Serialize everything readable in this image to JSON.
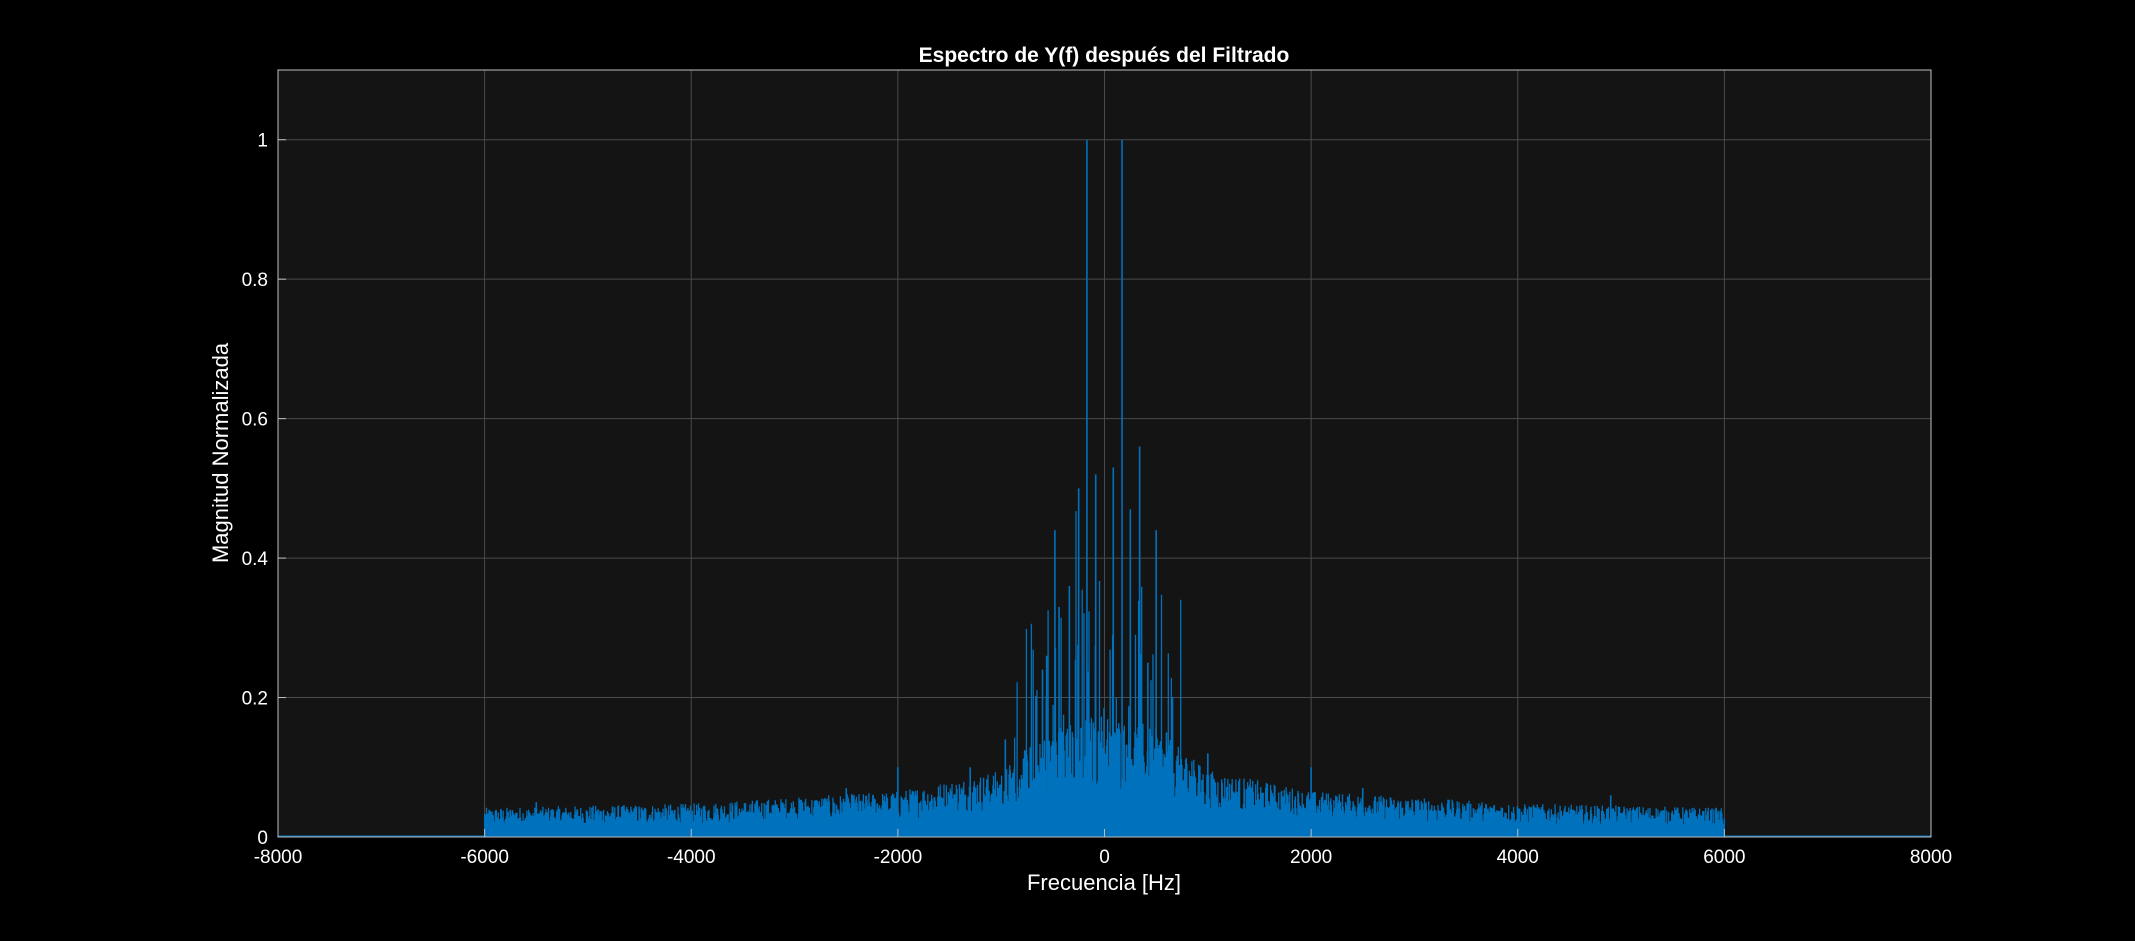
{
  "chart_data": {
    "type": "line",
    "title": "Espectro de Y(f) después del Filtrado",
    "xlabel": "Frecuencia [Hz]",
    "ylabel": "Magnitud Normalizada",
    "xlim": [
      -8000,
      8000
    ],
    "ylim": [
      0,
      1.1
    ],
    "xticks": [
      -8000,
      -6000,
      -4000,
      -2000,
      0,
      2000,
      4000,
      6000,
      8000
    ],
    "yticks": [
      0,
      0.2,
      0.4,
      0.6,
      0.8,
      1
    ],
    "xtick_labels": [
      "-8000",
      "-6000",
      "-4000",
      "-2000",
      "0",
      "2000",
      "4000",
      "6000",
      "8000"
    ],
    "ytick_labels": [
      "0",
      "0.2",
      "0.4",
      "0.6",
      "0.8",
      "1"
    ],
    "grid": true,
    "passband_hz": [
      -6000,
      6000
    ],
    "series": [
      {
        "color": "#0072BD",
        "peaks": [
          {
            "x": -170,
            "y": 1.0
          },
          {
            "x": 170,
            "y": 1.0
          },
          {
            "x": -85,
            "y": 0.52
          },
          {
            "x": 85,
            "y": 0.53
          },
          {
            "x": -250,
            "y": 0.5
          },
          {
            "x": 250,
            "y": 0.47
          },
          {
            "x": 340,
            "y": 0.56
          },
          {
            "x": -340,
            "y": 0.36
          },
          {
            "x": -480,
            "y": 0.44
          },
          {
            "x": 500,
            "y": 0.44
          },
          {
            "x": -440,
            "y": 0.33
          },
          {
            "x": -560,
            "y": 0.26
          },
          {
            "x": -600,
            "y": 0.24
          },
          {
            "x": 420,
            "y": 0.25
          },
          {
            "x": 600,
            "y": 0.15
          },
          {
            "x": 1000,
            "y": 0.12
          },
          {
            "x": -960,
            "y": 0.14
          },
          {
            "x": -1300,
            "y": 0.1
          },
          {
            "x": 1300,
            "y": 0.08
          },
          {
            "x": -2000,
            "y": 0.1
          },
          {
            "x": 2000,
            "y": 0.1
          },
          {
            "x": -2500,
            "y": 0.07
          },
          {
            "x": 2500,
            "y": 0.07
          },
          {
            "x": 4900,
            "y": 0.06
          },
          {
            "x": -5500,
            "y": 0.05
          }
        ],
        "envelope": [
          {
            "x": -6000,
            "y": 0.035
          },
          {
            "x": -4000,
            "y": 0.04
          },
          {
            "x": -2000,
            "y": 0.055
          },
          {
            "x": -1000,
            "y": 0.08
          },
          {
            "x": -500,
            "y": 0.13
          },
          {
            "x": 0,
            "y": 0.15
          },
          {
            "x": 500,
            "y": 0.13
          },
          {
            "x": 1000,
            "y": 0.08
          },
          {
            "x": 2000,
            "y": 0.055
          },
          {
            "x": 4000,
            "y": 0.04
          },
          {
            "x": 6000,
            "y": 0.035
          }
        ]
      }
    ]
  }
}
